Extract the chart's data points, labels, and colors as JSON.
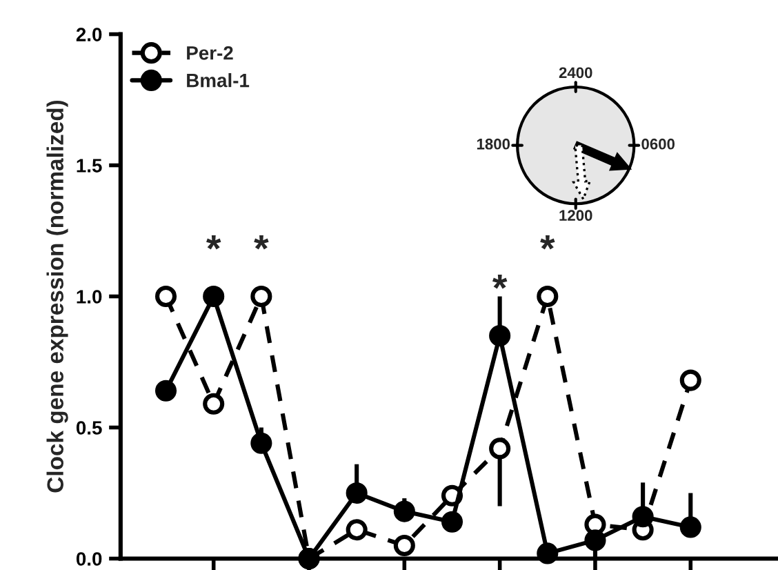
{
  "chart_data": {
    "type": "line",
    "ylabel": "Clock gene expression (normalized)",
    "categories": [
      null,
      null,
      null,
      null,
      null,
      null,
      null,
      null,
      null,
      null,
      null,
      null
    ],
    "ylim": [
      0,
      2
    ],
    "yticks": [
      {
        "value": 0,
        "label": "0.0"
      },
      {
        "value": 0.5,
        "label": "0.5"
      },
      {
        "value": 1,
        "label": "1.0"
      },
      {
        "value": 1.5,
        "label": "1.5"
      },
      {
        "value": 2,
        "label": "2.0"
      }
    ],
    "tick_labels": "y",
    "legend": "top left",
    "marker": "circle",
    "series": [
      {
        "name": "Per-2",
        "color": "#000000",
        "line_style": "dashed",
        "values": [
          1.0,
          0.59,
          1.0,
          0.0,
          0.11,
          0.05,
          0.24,
          0.42,
          1.0,
          0.13,
          0.11,
          0.68
        ],
        "errors": [
          null,
          null,
          null,
          null,
          null,
          null,
          null,
          [
            0.2,
            0.42
          ],
          null,
          null,
          null,
          null
        ],
        "value_labels": [
          null,
          null,
          "*",
          null,
          null,
          null,
          null,
          null,
          "*",
          null,
          null,
          null
        ]
      },
      {
        "name": "Bmal-1",
        "color": "#000000",
        "line_style": "solid",
        "values": [
          0.64,
          1.0,
          0.44,
          0.0,
          0.25,
          0.18,
          0.14,
          0.85,
          0.02,
          0.07,
          0.16,
          0.12
        ],
        "errors": [
          null,
          null,
          [
            0.44,
            0.5
          ],
          null,
          [
            0.25,
            0.36
          ],
          [
            0.18,
            0.23
          ],
          null,
          [
            0.85,
            1.0
          ],
          null,
          [
            0.0,
            0.07
          ],
          [
            0.16,
            0.29
          ],
          [
            0.12,
            0.25
          ]
        ],
        "value_labels": [
          null,
          "*",
          null,
          null,
          null,
          null,
          null,
          "*",
          null,
          null,
          null,
          null
        ]
      }
    ],
    "annotations": [
      "2400",
      "0600",
      "1200",
      "1800"
    ]
  }
}
